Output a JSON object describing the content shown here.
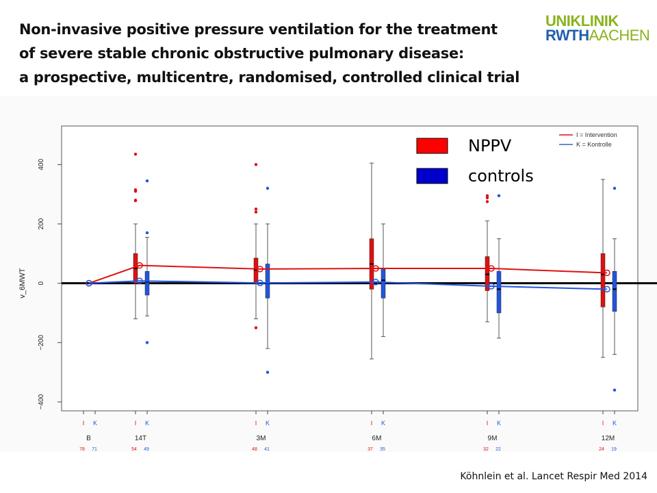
{
  "slide": {
    "title_lines": [
      "Non-invasive positive pressure ventilation for the treatment",
      "of severe stable chronic obstructive pulmonary disease:",
      "a prospective, multicentre, randomised, controlled clinical trial"
    ],
    "logo": {
      "line1": "UNIKLINIK",
      "line2a": "RWTH",
      "line2b": "AACHEN",
      "green": "#8ab31e",
      "blue": "#1f5fae"
    },
    "citation": "Köhnlein et al. Lancet Respir Med 2014"
  },
  "colors": {
    "intervention": "#e01010",
    "control": "#2255dd",
    "legend_red": "#ff0000",
    "legend_blue": "#0000cc",
    "frame": "#555555"
  },
  "chart_data": {
    "type": "box",
    "ylabel": "v_6MWT",
    "ylim": [
      -430,
      530
    ],
    "yticks": [
      -400,
      -200,
      0,
      200,
      400
    ],
    "reference_line_y": 0,
    "visits": [
      {
        "label": "B",
        "n_I": "78",
        "n_K": "71"
      },
      {
        "label": "14T",
        "n_I": "54",
        "n_K": "49"
      },
      {
        "label": "3M",
        "n_I": "48",
        "n_K": "41"
      },
      {
        "label": "6M",
        "n_I": "37",
        "n_K": "35"
      },
      {
        "label": "9M",
        "n_I": "32",
        "n_K": "22"
      },
      {
        "label": "12M",
        "n_I": "24",
        "n_K": "19"
      }
    ],
    "group_codes": {
      "I": "I",
      "K": "K"
    },
    "legend_small": [
      {
        "text": "I = Intervention",
        "color": "#e01010"
      },
      {
        "text": "K = Kontrolle",
        "color": "#3366cc"
      }
    ],
    "legend_large": [
      {
        "text": "NPPV",
        "color": "#ff0000"
      },
      {
        "text": "controls",
        "color": "#0000cc"
      }
    ],
    "series": [
      {
        "code": "I",
        "means": [
          0,
          60,
          48,
          50,
          50,
          35
        ],
        "boxes": [
          null,
          {
            "q1": 0,
            "median": 50,
            "q3": 100,
            "lo": -120,
            "hi": 200,
            "outliers": [
              435,
              315,
              310,
              280,
              278
            ]
          },
          {
            "q1": 0,
            "median": 45,
            "q3": 85,
            "lo": -120,
            "hi": 200,
            "outliers": [
              400,
              250,
              240,
              -150
            ]
          },
          {
            "q1": -20,
            "median": 65,
            "q3": 150,
            "lo": -255,
            "hi": 405,
            "outliers": []
          },
          {
            "q1": -25,
            "median": 30,
            "q3": 90,
            "lo": -130,
            "hi": 210,
            "outliers": [
              295,
              288,
              275
            ]
          },
          {
            "q1": -80,
            "median": 30,
            "q3": 100,
            "lo": -250,
            "hi": 350,
            "outliers": []
          }
        ]
      },
      {
        "code": "K",
        "means": [
          0,
          8,
          1,
          4,
          -10,
          -20
        ],
        "boxes": [
          null,
          {
            "q1": -40,
            "median": 5,
            "q3": 40,
            "lo": -110,
            "hi": 155,
            "outliers": [
              345,
              170,
              -200
            ]
          },
          {
            "q1": -50,
            "median": 0,
            "q3": 65,
            "lo": -220,
            "hi": 200,
            "outliers": [
              320,
              -300
            ]
          },
          {
            "q1": -50,
            "median": 10,
            "q3": 50,
            "lo": -180,
            "hi": 200,
            "outliers": []
          },
          {
            "q1": -100,
            "median": -20,
            "q3": 40,
            "lo": -185,
            "hi": 150,
            "outliers": [
              295
            ]
          },
          {
            "q1": -95,
            "median": -20,
            "q3": 40,
            "lo": -240,
            "hi": 150,
            "outliers": [
              320,
              -360
            ]
          }
        ]
      }
    ]
  }
}
